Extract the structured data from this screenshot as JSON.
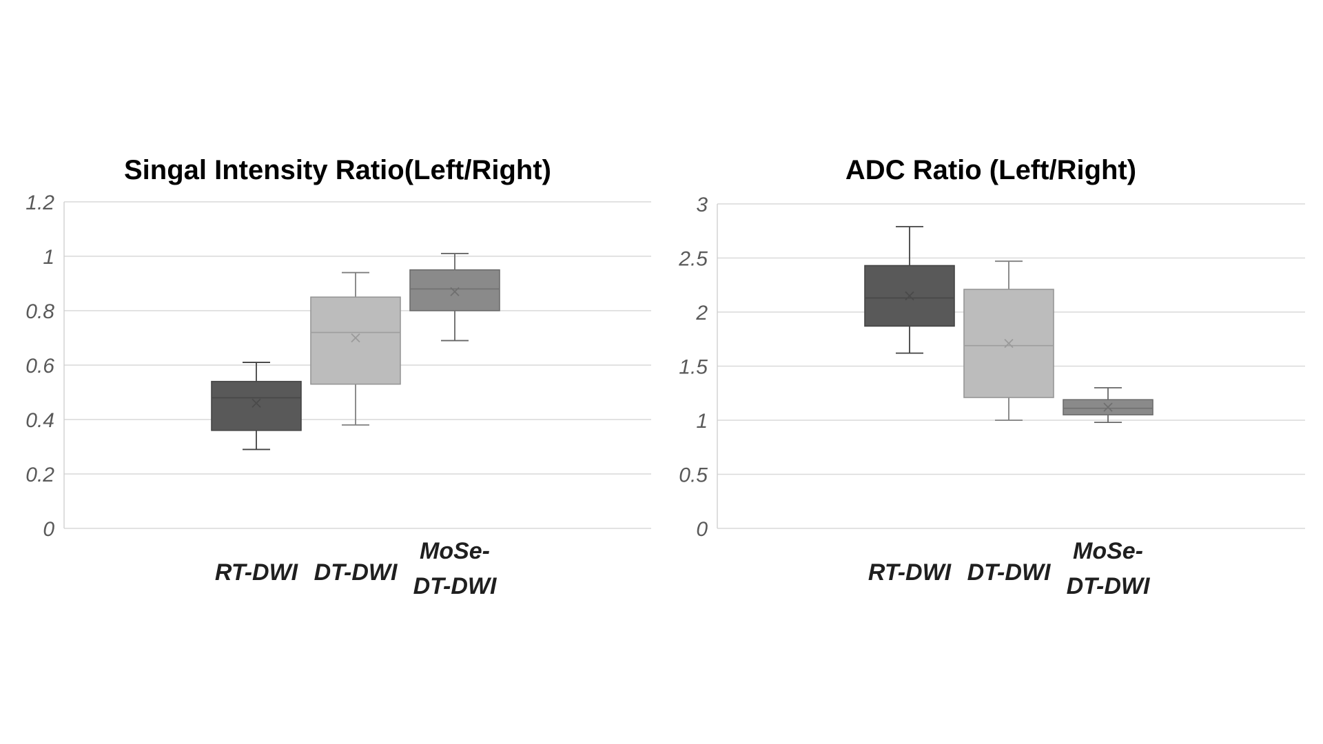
{
  "page": {
    "background": "#ffffff"
  },
  "chart_data": [
    {
      "type": "boxplot",
      "title": "Singal Intensity Ratio(Left/Right)",
      "ylim": [
        0,
        1.2
      ],
      "ytick_step": 0.2,
      "ytick_labels": [
        "1.2",
        "1",
        "0.8",
        "0.6",
        "0.4",
        "0.2",
        "0"
      ],
      "grid": true,
      "legend": "none",
      "categories": [
        "RT-DWI",
        "DT-DWI",
        "MoSe-DT-DWI"
      ],
      "category_label_lines": [
        [
          "RT-DWI"
        ],
        [
          "DT-DWI"
        ],
        [
          "MoSe-",
          "DT-DWI"
        ]
      ],
      "series": [
        {
          "name": "RT-DWI",
          "whisker_low": 0.29,
          "q1": 0.36,
          "median": 0.48,
          "mean": 0.46,
          "q3": 0.54,
          "whisker_high": 0.61,
          "fill": "#595959",
          "stroke": "#454545",
          "median_color": "#474747",
          "whisker_color": "#404040",
          "mean_color": "#4a4a4a"
        },
        {
          "name": "DT-DWI",
          "whisker_low": 0.38,
          "q1": 0.53,
          "median": 0.72,
          "mean": 0.7,
          "q3": 0.85,
          "whisker_high": 0.94,
          "fill": "#bcbcbc",
          "stroke": "#969696",
          "median_color": "#9e9e9e",
          "whisker_color": "#7f7f7f",
          "mean_color": "#9a9a9a"
        },
        {
          "name": "MoSe-DT-DWI",
          "whisker_low": 0.69,
          "q1": 0.8,
          "median": 0.88,
          "mean": 0.87,
          "q3": 0.95,
          "whisker_high": 1.01,
          "fill": "#8a8a8a",
          "stroke": "#6d6d6d",
          "median_color": "#707070",
          "whisker_color": "#666666",
          "mean_color": "#6f6f6f"
        }
      ]
    },
    {
      "type": "boxplot",
      "title": "ADC Ratio (Left/Right)",
      "ylim": [
        0,
        3
      ],
      "ytick_step": 0.5,
      "ytick_labels": [
        "3",
        "2.5",
        "2",
        "1.5",
        "1",
        "0.5",
        "0"
      ],
      "grid": true,
      "legend": "none",
      "categories": [
        "RT-DWI",
        "DT-DWI",
        "MoSe-DT-DWI"
      ],
      "category_label_lines": [
        [
          "RT-DWI"
        ],
        [
          "DT-DWI"
        ],
        [
          "MoSe-",
          "DT-DWI"
        ]
      ],
      "series": [
        {
          "name": "RT-DWI",
          "whisker_low": 1.62,
          "q1": 1.87,
          "median": 2.13,
          "mean": 2.15,
          "q3": 2.43,
          "whisker_high": 2.79,
          "fill": "#595959",
          "stroke": "#454545",
          "median_color": "#474747",
          "whisker_color": "#404040",
          "mean_color": "#4a4a4a"
        },
        {
          "name": "DT-DWI",
          "whisker_low": 1.0,
          "q1": 1.21,
          "median": 1.69,
          "mean": 1.71,
          "q3": 2.21,
          "whisker_high": 2.47,
          "fill": "#bcbcbc",
          "stroke": "#969696",
          "median_color": "#9e9e9e",
          "whisker_color": "#7f7f7f",
          "mean_color": "#9a9a9a"
        },
        {
          "name": "MoSe-DT-DWI",
          "whisker_low": 0.98,
          "q1": 1.05,
          "median": 1.11,
          "mean": 1.12,
          "q3": 1.19,
          "whisker_high": 1.3,
          "fill": "#8a8a8a",
          "stroke": "#6d6d6d",
          "median_color": "#707070",
          "whisker_color": "#666666",
          "mean_color": "#6f6f6f"
        }
      ]
    }
  ],
  "style_colors": {
    "gridline": "#d9d9d9",
    "axis_line": "#cfcfcf",
    "ytick_label": "#595959",
    "xlabel_text": "#1f1f1f",
    "title_text": "#000000"
  }
}
